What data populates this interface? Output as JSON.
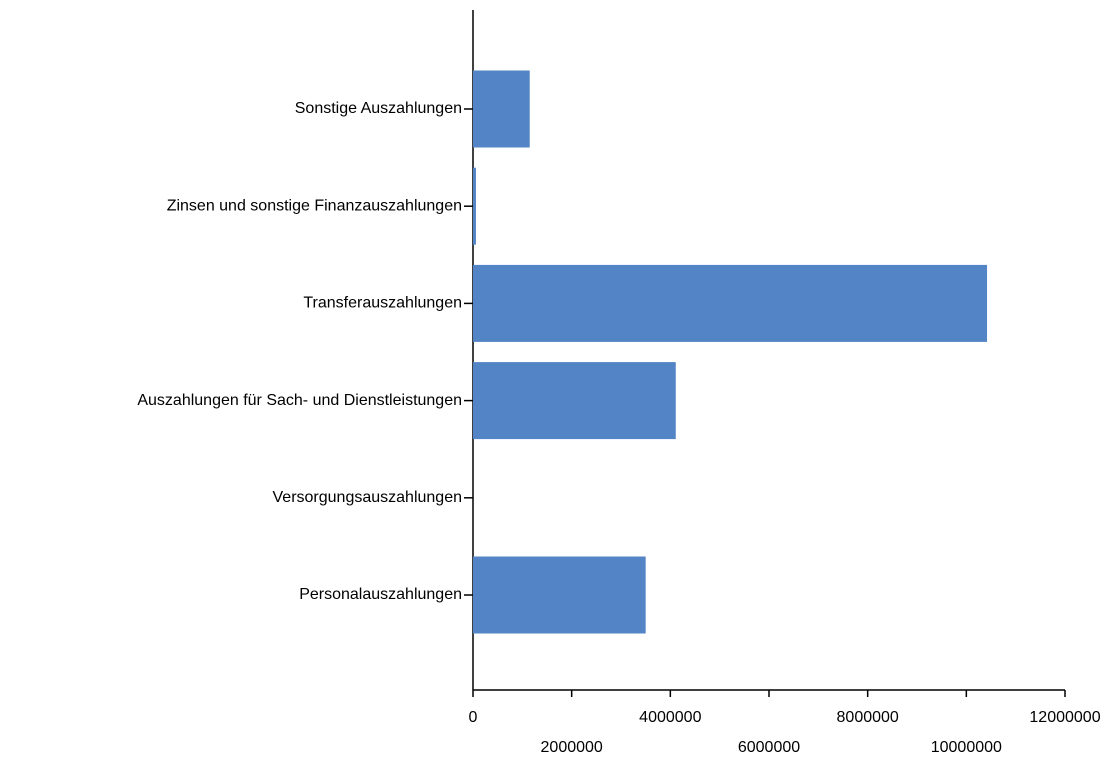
{
  "chart_data": {
    "type": "bar",
    "orientation": "horizontal",
    "categories": [
      "Sonstige Auszahlungen",
      "Zinsen und sonstige Finanzauszahlungen",
      "Transferauszahlungen",
      "Auszahlungen für Sach- und Dienstleistungen",
      "Versorgungsauszahlungen",
      "Personalauszahlungen"
    ],
    "values": [
      1150000,
      60000,
      10420000,
      4110000,
      0,
      3500000
    ],
    "color": "#5384c5",
    "xlim": [
      0,
      12000000
    ],
    "xticks": [
      0,
      2000000,
      4000000,
      6000000,
      8000000,
      10000000,
      12000000
    ],
    "grid": false
  }
}
